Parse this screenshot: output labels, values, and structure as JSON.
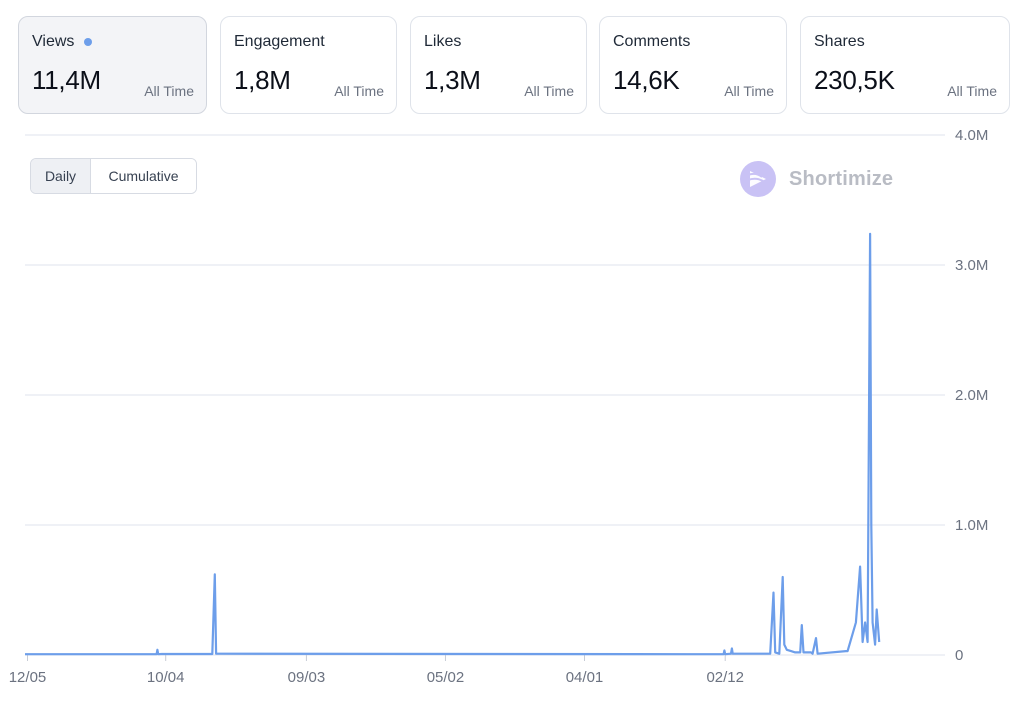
{
  "cards": [
    {
      "label": "Views",
      "value": "11,4M",
      "period": "All Time",
      "active": true
    },
    {
      "label": "Engagement",
      "value": "1,8M",
      "period": "All Time",
      "active": false
    },
    {
      "label": "Likes",
      "value": "1,3M",
      "period": "All Time",
      "active": false
    },
    {
      "label": "Comments",
      "value": "14,6K",
      "period": "All Time",
      "active": false
    },
    {
      "label": "Shares",
      "value": "230,5K",
      "period": "All Time",
      "active": false
    }
  ],
  "toggle": {
    "daily": "Daily",
    "cumulative": "Cumulative",
    "selected": "Daily"
  },
  "brand": {
    "name": "Shortimize"
  },
  "colors": {
    "line": "#6d9eea",
    "grid": "#dfe3ec",
    "logo": "#c9c2f5",
    "brand_text": "#b9bcc4"
  },
  "chart_data": {
    "type": "line",
    "title": "",
    "xlabel": "",
    "ylabel": "",
    "ylim": [
      0,
      4000000
    ],
    "y_ticks": [
      {
        "value": 0,
        "label": "0"
      },
      {
        "value": 1000000,
        "label": "1.0M"
      },
      {
        "value": 2000000,
        "label": "2.0M"
      },
      {
        "value": 3000000,
        "label": "3.0M"
      },
      {
        "value": 4000000,
        "label": "4.0M"
      }
    ],
    "x_range": [
      0,
      100
    ],
    "x_ticks": [
      {
        "value": 0.3,
        "label": "12/05"
      },
      {
        "value": 16.9,
        "label": "10/04"
      },
      {
        "value": 33.8,
        "label": "09/03"
      },
      {
        "value": 50.5,
        "label": "05/02"
      },
      {
        "value": 67.2,
        "label": "04/01"
      },
      {
        "value": 84.1,
        "label": "02/12"
      }
    ],
    "grid": true,
    "legend": "none",
    "series": [
      {
        "values": [
          [
            0,
            6000
          ],
          [
            15.8,
            6000
          ],
          [
            15.9,
            40000
          ],
          [
            16.0,
            6000
          ],
          [
            16.4,
            8000
          ],
          [
            22.5,
            8000
          ],
          [
            22.8,
            620000
          ],
          [
            22.95,
            10000
          ],
          [
            80,
            6000
          ],
          [
            83.9,
            6000
          ],
          [
            84.0,
            35000
          ],
          [
            84.1,
            6000
          ],
          [
            84.8,
            10000
          ],
          [
            84.9,
            50000
          ],
          [
            85.0,
            10000
          ],
          [
            89.5,
            10000
          ],
          [
            89.9,
            480000
          ],
          [
            90.1,
            20000
          ],
          [
            90.6,
            10000
          ],
          [
            91.0,
            600000
          ],
          [
            91.2,
            80000
          ],
          [
            91.5,
            40000
          ],
          [
            92.0,
            30000
          ],
          [
            92.5,
            20000
          ],
          [
            93.1,
            20000
          ],
          [
            93.3,
            230000
          ],
          [
            93.5,
            20000
          ],
          [
            94.4,
            20000
          ],
          [
            94.6,
            10000
          ],
          [
            95.0,
            130000
          ],
          [
            95.2,
            10000
          ],
          [
            98.6,
            30000
          ],
          [
            98.8,
            30000
          ],
          [
            99.8,
            250000
          ],
          [
            100.3,
            680000
          ],
          [
            100.6,
            100000
          ],
          [
            100.9,
            250000
          ],
          [
            101.2,
            100000
          ],
          [
            101.5,
            3240000
          ],
          [
            101.65,
            1000000
          ],
          [
            101.8,
            250000
          ],
          [
            102.1,
            80000
          ],
          [
            102.3,
            350000
          ],
          [
            102.6,
            100000
          ]
        ]
      }
    ]
  }
}
